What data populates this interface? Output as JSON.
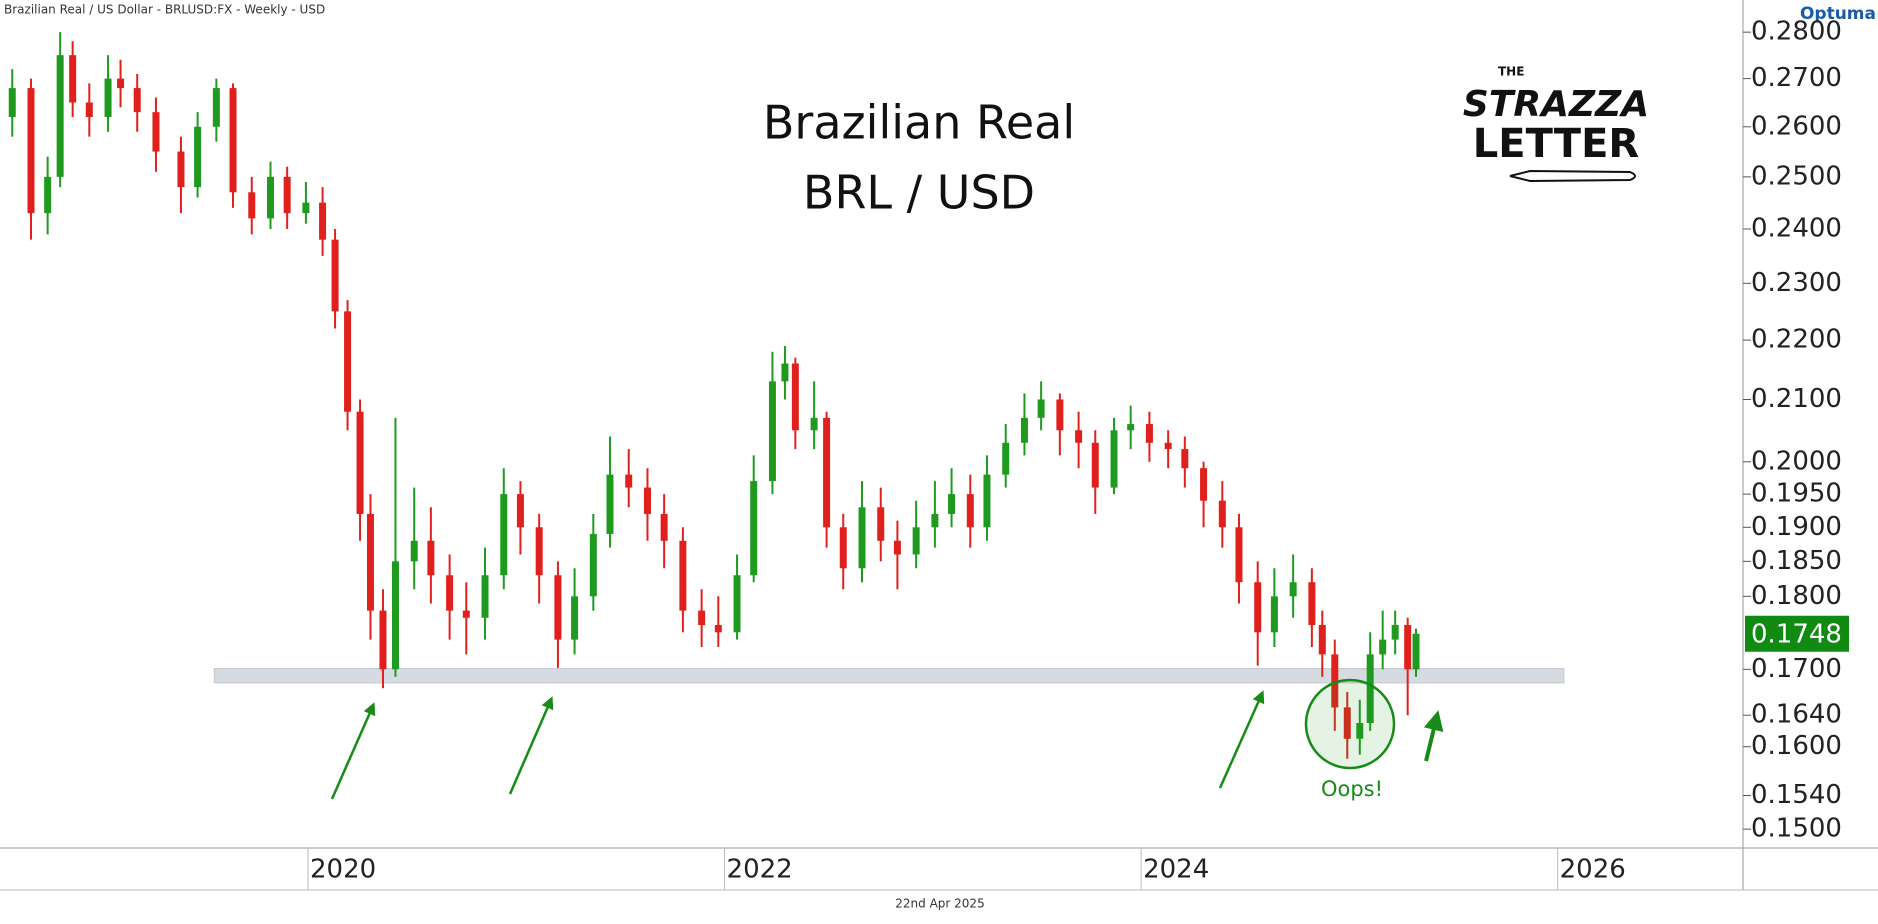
{
  "header": "Brazilian Real / US Dollar - BRLUSD:FX - Weekly - USD",
  "branding": "Optuma",
  "logo": {
    "top": "THE",
    "middle": "STRAZZA",
    "bottom": "LETTER"
  },
  "chart_data": {
    "type": "candlestick",
    "title": "Brazilian Real",
    "subtitle": "BRL / USD",
    "annotation": "Oops!",
    "date_label": "22nd Apr 2025",
    "log_scale": true,
    "up_color": "#1f9a1f",
    "down_color": "#e0201c",
    "zone_color": "#d5dbe1",
    "last_color": "#108a10",
    "x": [
      2018.58,
      2018.67,
      2018.75,
      2018.81,
      2018.87,
      2018.95,
      2019.04,
      2019.1,
      2019.18,
      2019.27,
      2019.39,
      2019.47,
      2019.56,
      2019.64,
      2019.73,
      2019.82,
      2019.9,
      2019.99,
      2020.07,
      2020.13,
      2020.19,
      2020.25,
      2020.3,
      2020.36,
      2020.42,
      2020.51,
      2020.59,
      2020.68,
      2020.76,
      2020.85,
      2020.94,
      2021.02,
      2021.11,
      2021.2,
      2021.28,
      2021.37,
      2021.45,
      2021.54,
      2021.63,
      2021.71,
      2021.8,
      2021.89,
      2021.97,
      2022.06,
      2022.14,
      2022.23,
      2022.29,
      2022.34,
      2022.43,
      2022.49,
      2022.57,
      2022.66,
      2022.75,
      2022.83,
      2022.92,
      2023.01,
      2023.09,
      2023.18,
      2023.26,
      2023.35,
      2023.44,
      2023.52,
      2023.61,
      2023.7,
      2023.78,
      2023.87,
      2023.95,
      2024.04,
      2024.13,
      2024.21,
      2024.3,
      2024.39,
      2024.47,
      2024.56,
      2024.64,
      2024.73,
      2024.82,
      2024.87,
      2024.93,
      2024.99,
      2025.05,
      2025.1,
      2025.16,
      2025.22,
      2025.28,
      2025.32
    ],
    "open": [
      0.262,
      0.268,
      0.243,
      0.25,
      0.275,
      0.265,
      0.262,
      0.27,
      0.268,
      0.263,
      0.255,
      0.248,
      0.26,
      0.268,
      0.247,
      0.242,
      0.25,
      0.243,
      0.245,
      0.238,
      0.225,
      0.208,
      0.192,
      0.178,
      0.17,
      0.185,
      0.188,
      0.183,
      0.178,
      0.177,
      0.183,
      0.195,
      0.19,
      0.183,
      0.174,
      0.18,
      0.189,
      0.198,
      0.196,
      0.192,
      0.188,
      0.178,
      0.176,
      0.175,
      0.183,
      0.197,
      0.213,
      0.216,
      0.205,
      0.207,
      0.19,
      0.184,
      0.193,
      0.188,
      0.186,
      0.19,
      0.192,
      0.195,
      0.19,
      0.198,
      0.203,
      0.207,
      0.21,
      0.205,
      0.203,
      0.196,
      0.205,
      0.206,
      0.203,
      0.202,
      0.199,
      0.194,
      0.19,
      0.182,
      0.175,
      0.18,
      0.182,
      0.176,
      0.172,
      0.165,
      0.161,
      0.163,
      0.172,
      0.174,
      0.176,
      0.17
    ],
    "high": [
      0.272,
      0.27,
      0.254,
      0.28,
      0.278,
      0.269,
      0.275,
      0.274,
      0.271,
      0.266,
      0.258,
      0.263,
      0.27,
      0.269,
      0.25,
      0.253,
      0.252,
      0.249,
      0.248,
      0.24,
      0.227,
      0.21,
      0.195,
      0.181,
      0.207,
      0.196,
      0.193,
      0.186,
      0.182,
      0.187,
      0.199,
      0.197,
      0.192,
      0.185,
      0.184,
      0.192,
      0.204,
      0.202,
      0.199,
      0.195,
      0.19,
      0.181,
      0.18,
      0.186,
      0.201,
      0.218,
      0.219,
      0.217,
      0.213,
      0.208,
      0.192,
      0.197,
      0.196,
      0.191,
      0.194,
      0.197,
      0.199,
      0.198,
      0.201,
      0.206,
      0.211,
      0.213,
      0.211,
      0.208,
      0.205,
      0.207,
      0.209,
      0.208,
      0.205,
      0.204,
      0.2,
      0.197,
      0.192,
      0.185,
      0.184,
      0.186,
      0.184,
      0.178,
      0.174,
      0.167,
      0.166,
      0.175,
      0.178,
      0.178,
      0.177,
      0.1755
    ],
    "low": [
      0.258,
      0.238,
      0.239,
      0.248,
      0.262,
      0.258,
      0.259,
      0.264,
      0.259,
      0.251,
      0.243,
      0.246,
      0.257,
      0.244,
      0.239,
      0.24,
      0.24,
      0.241,
      0.235,
      0.222,
      0.205,
      0.188,
      0.174,
      0.1675,
      0.169,
      0.181,
      0.179,
      0.174,
      0.172,
      0.174,
      0.181,
      0.186,
      0.179,
      0.1702,
      0.172,
      0.178,
      0.187,
      0.193,
      0.188,
      0.184,
      0.175,
      0.173,
      0.173,
      0.174,
      0.182,
      0.195,
      0.21,
      0.202,
      0.202,
      0.187,
      0.181,
      0.182,
      0.185,
      0.181,
      0.184,
      0.187,
      0.19,
      0.187,
      0.188,
      0.196,
      0.201,
      0.205,
      0.201,
      0.199,
      0.192,
      0.195,
      0.202,
      0.2,
      0.199,
      0.196,
      0.19,
      0.187,
      0.179,
      0.1705,
      0.173,
      0.177,
      0.173,
      0.169,
      0.162,
      0.1585,
      0.159,
      0.162,
      0.17,
      0.172,
      0.164,
      0.169
    ],
    "close": [
      0.268,
      0.243,
      0.25,
      0.275,
      0.265,
      0.262,
      0.27,
      0.268,
      0.263,
      0.255,
      0.248,
      0.26,
      0.268,
      0.247,
      0.242,
      0.25,
      0.243,
      0.245,
      0.238,
      0.225,
      0.208,
      0.192,
      0.178,
      0.17,
      0.185,
      0.188,
      0.183,
      0.178,
      0.177,
      0.183,
      0.195,
      0.19,
      0.183,
      0.174,
      0.18,
      0.189,
      0.198,
      0.196,
      0.192,
      0.188,
      0.178,
      0.176,
      0.175,
      0.183,
      0.197,
      0.213,
      0.216,
      0.205,
      0.207,
      0.19,
      0.184,
      0.193,
      0.188,
      0.186,
      0.19,
      0.192,
      0.195,
      0.19,
      0.198,
      0.203,
      0.207,
      0.21,
      0.205,
      0.203,
      0.196,
      0.205,
      0.206,
      0.203,
      0.202,
      0.199,
      0.194,
      0.19,
      0.182,
      0.175,
      0.18,
      0.182,
      0.176,
      0.172,
      0.165,
      0.161,
      0.163,
      0.172,
      0.174,
      0.176,
      0.17,
      0.1748
    ],
    "support_zone": {
      "x": [
        2019.55,
        2026.03
      ],
      "y": [
        0.1682,
        0.1701
      ]
    },
    "xlim": [
      2018.55,
      2026.89
    ],
    "xticks": [
      2020,
      2022,
      2024,
      2026
    ],
    "ylim": [
      0.1478,
      0.2829
    ],
    "yticks": [
      {
        "value": 0.15,
        "label": "0.1500"
      },
      {
        "value": 0.154,
        "label": "0.1540"
      },
      {
        "value": 0.16,
        "label": "0.1600"
      },
      {
        "value": 0.164,
        "label": "0.1640"
      },
      {
        "value": 0.17,
        "label": "0.1700"
      },
      {
        "value": 0.18,
        "label": "0.1800"
      },
      {
        "value": 0.185,
        "label": "0.1850"
      },
      {
        "value": 0.19,
        "label": "0.1900"
      },
      {
        "value": 0.195,
        "label": "0.1950"
      },
      {
        "value": 0.2,
        "label": "0.2000"
      },
      {
        "value": 0.21,
        "label": "0.2100"
      },
      {
        "value": 0.22,
        "label": "0.2200"
      },
      {
        "value": 0.23,
        "label": "0.2300"
      },
      {
        "value": 0.24,
        "label": "0.2400"
      },
      {
        "value": 0.25,
        "label": "0.2500"
      },
      {
        "value": 0.26,
        "label": "0.2600"
      },
      {
        "value": 0.27,
        "label": "0.2700"
      },
      {
        "value": 0.28,
        "label": "0.2800"
      }
    ]
  }
}
